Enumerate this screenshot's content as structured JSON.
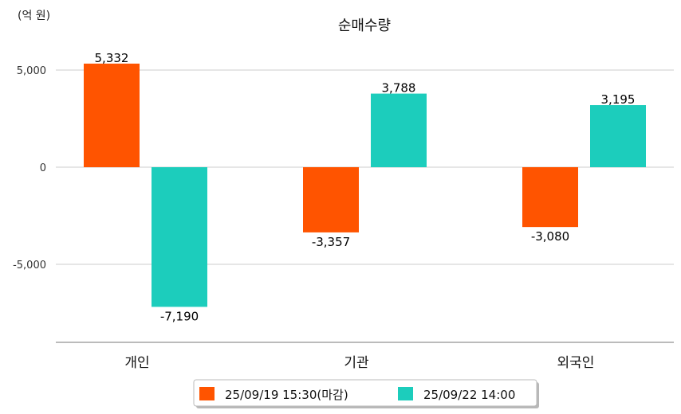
{
  "chart_data": {
    "type": "bar",
    "title": "순매수량",
    "unit_label": "(억 원)",
    "categories": [
      "개인",
      "기관",
      "외국인"
    ],
    "series": [
      {
        "name": "25/09/19 15:30(마감)",
        "color": "#FF5400",
        "values": [
          5332,
          -3357,
          -3080
        ],
        "labels": [
          "5,332",
          "-3,357",
          "-3,080"
        ]
      },
      {
        "name": "25/09/22 14:00",
        "color": "#1CCDBC",
        "values": [
          -7190,
          3788,
          3195
        ],
        "labels": [
          "-7,190",
          "3,788",
          "3,195"
        ]
      }
    ],
    "yticks": [
      5000,
      0,
      -5000
    ],
    "ytick_labels": [
      "5,000",
      "0",
      "-5,000"
    ],
    "ylim": [
      -9000,
      6000
    ],
    "grid": true,
    "legend_position": "bottom"
  }
}
